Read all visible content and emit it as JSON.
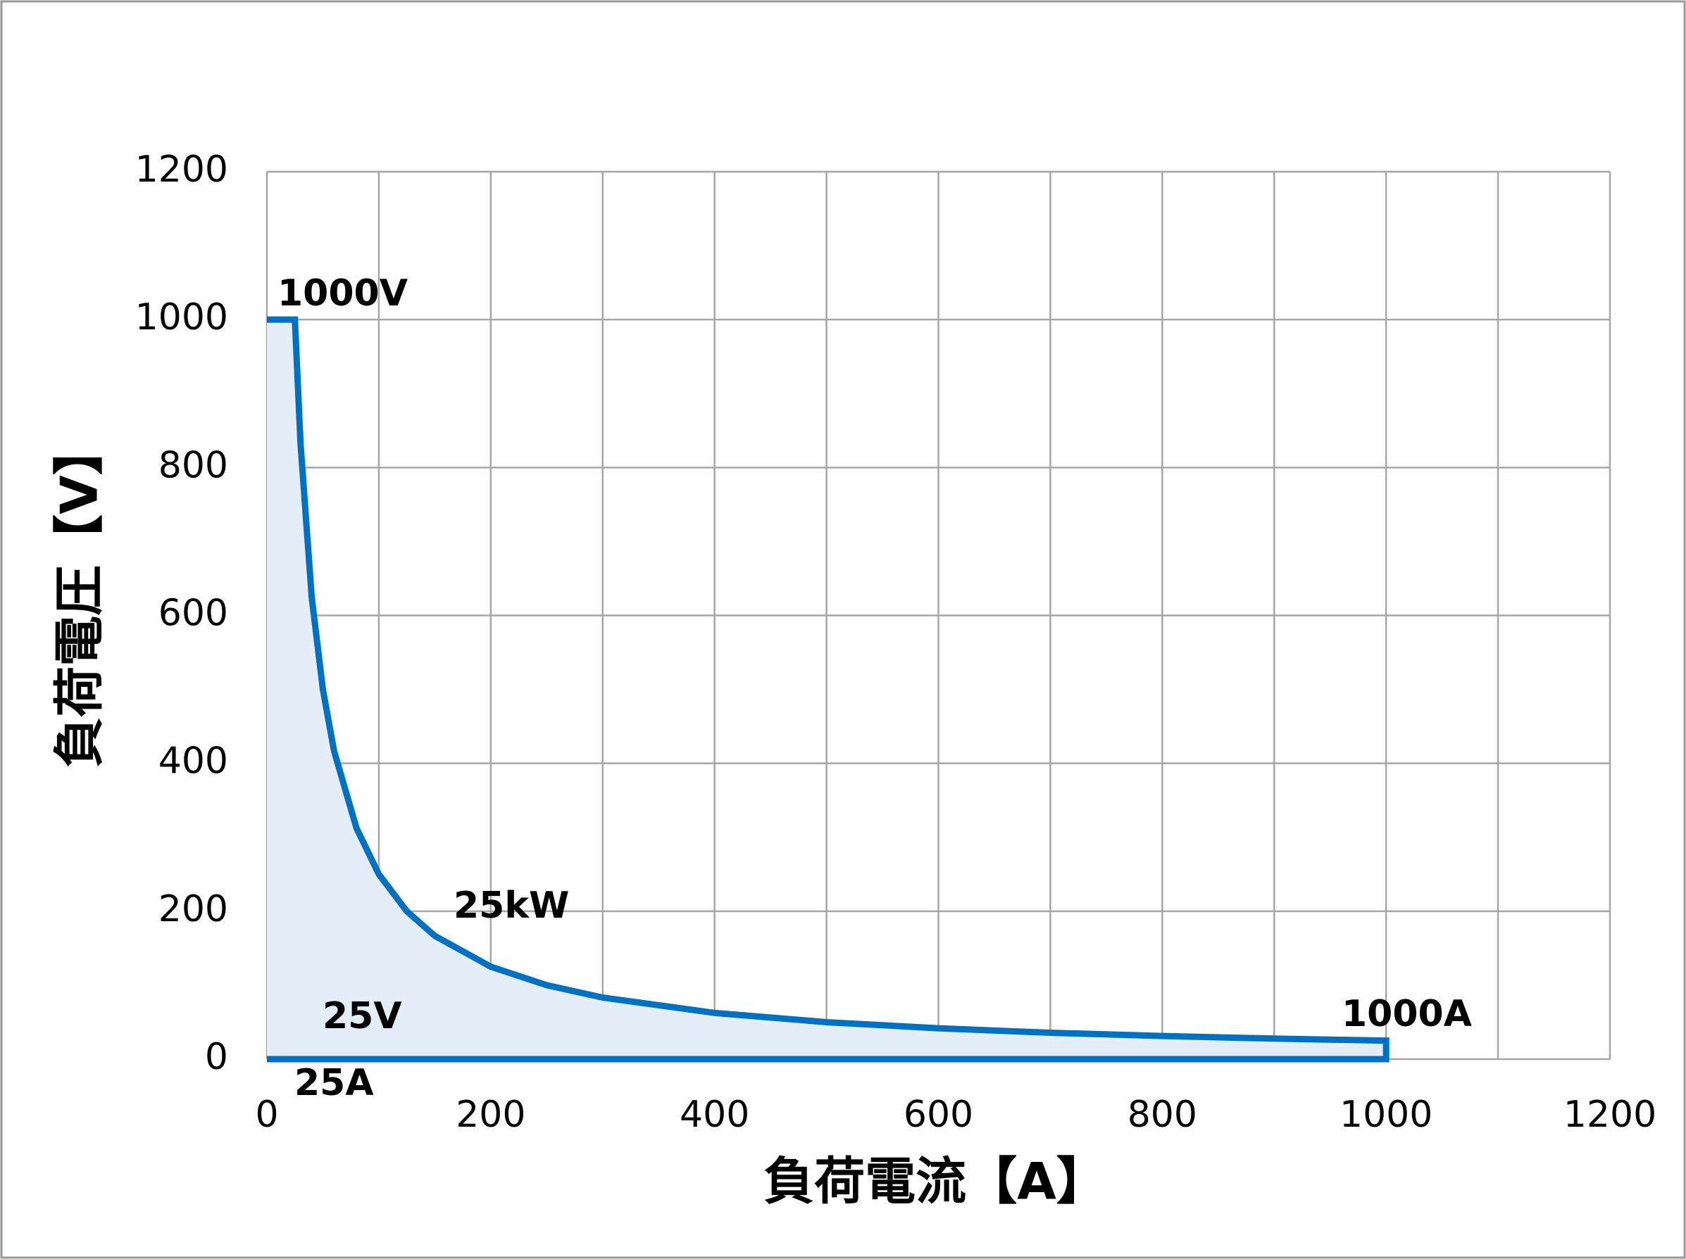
{
  "chart_data": {
    "type": "line",
    "xlabel": "負荷電流【A】",
    "ylabel": "負荷電圧【V】",
    "x": [
      0,
      25,
      30,
      40,
      50,
      60,
      80,
      100,
      125,
      150,
      200,
      250,
      300,
      400,
      500,
      600,
      700,
      800,
      900,
      1000,
      1000,
      0
    ],
    "series": [
      {
        "color": "#0070c0",
        "fill": "#e3eef8",
        "values": [
          1000,
          1000,
          833.3,
          625,
          500,
          416.7,
          312.5,
          250,
          200,
          166.7,
          125,
          100,
          83.3,
          62.5,
          50,
          41.7,
          35.7,
          31.3,
          27.8,
          25,
          0,
          0
        ]
      }
    ],
    "xlim": [
      0,
      1200
    ],
    "ylim": [
      0,
      1200
    ],
    "xticks": [
      0,
      200,
      400,
      600,
      800,
      1000,
      1200
    ],
    "xgrid": [
      0,
      100,
      200,
      300,
      400,
      500,
      600,
      700,
      800,
      900,
      1000,
      1100,
      1200
    ],
    "yticks": [
      0,
      200,
      400,
      600,
      800,
      1000,
      1200
    ],
    "grid": true,
    "hlines": [
      {
        "value": 25,
        "label": "25V"
      }
    ],
    "vlines": [
      {
        "value": 25,
        "label": "25A"
      }
    ],
    "annotations": [
      "1000V",
      "25kW",
      "1000A"
    ]
  }
}
